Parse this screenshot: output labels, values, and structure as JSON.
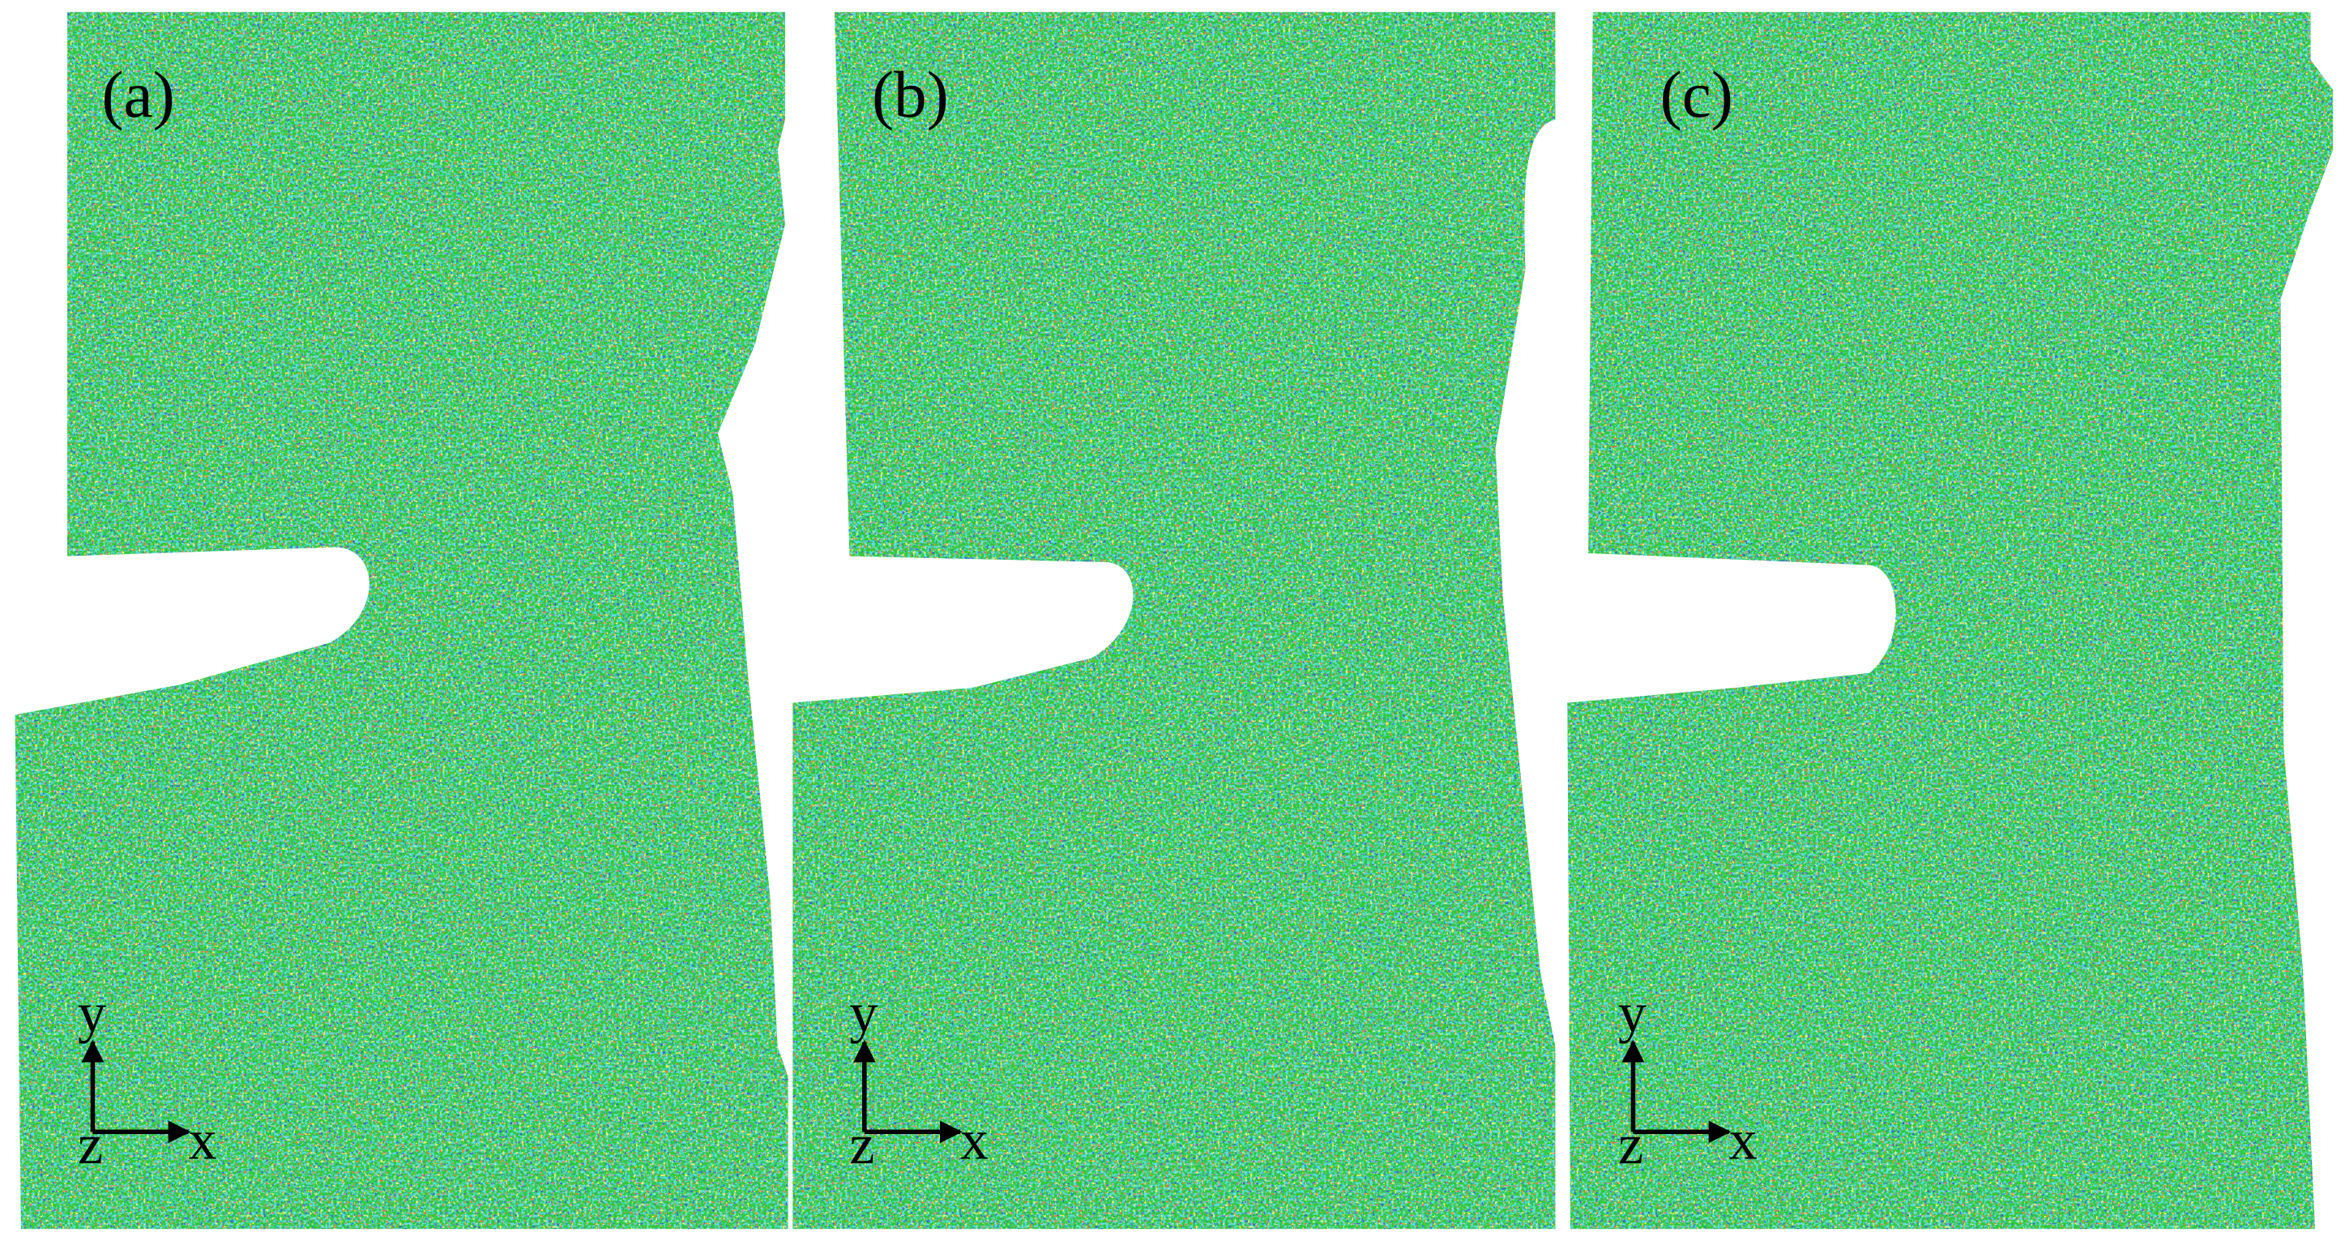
{
  "panels": [
    {
      "label": "(a)",
      "axes": {
        "y": "y",
        "x": "x",
        "z": "z"
      }
    },
    {
      "label": "(b)",
      "axes": {
        "y": "y",
        "x": "x",
        "z": "z"
      }
    },
    {
      "label": "(c)",
      "axes": {
        "y": "y",
        "x": "x",
        "z": "z"
      }
    }
  ]
}
